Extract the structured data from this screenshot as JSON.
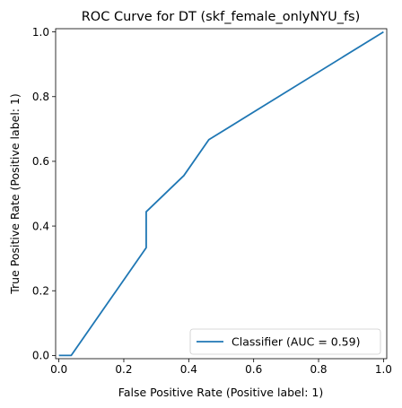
{
  "chart_data": {
    "type": "line",
    "title": "ROC Curve for DT (skf_female_onlyNYU_fs)",
    "xlabel": "False Positive Rate (Positive label: 1)",
    "ylabel": "True Positive Rate (Positive label: 1)",
    "xlim": [
      -0.01,
      1.01
    ],
    "ylim": [
      -0.01,
      1.01
    ],
    "x_ticks": [
      0.0,
      0.2,
      0.4,
      0.6,
      0.8,
      1.0
    ],
    "x_tick_labels": [
      "0.0",
      "0.2",
      "0.4",
      "0.6",
      "0.8",
      "1.0"
    ],
    "y_ticks": [
      0.0,
      0.2,
      0.4,
      0.6,
      0.8,
      1.0
    ],
    "y_tick_labels": [
      "0.0",
      "0.2",
      "0.4",
      "0.6",
      "0.8",
      "1.0"
    ],
    "grid": false,
    "legend_position": "lower-right",
    "series": [
      {
        "name": "Classifier (AUC = 0.59)",
        "color": "#1f77b4",
        "x": [
          0.0,
          0.038,
          0.269,
          0.269,
          0.385,
          0.462,
          1.0
        ],
        "y": [
          0.0,
          0.0,
          0.333,
          0.444,
          0.556,
          0.667,
          1.0
        ]
      }
    ]
  }
}
